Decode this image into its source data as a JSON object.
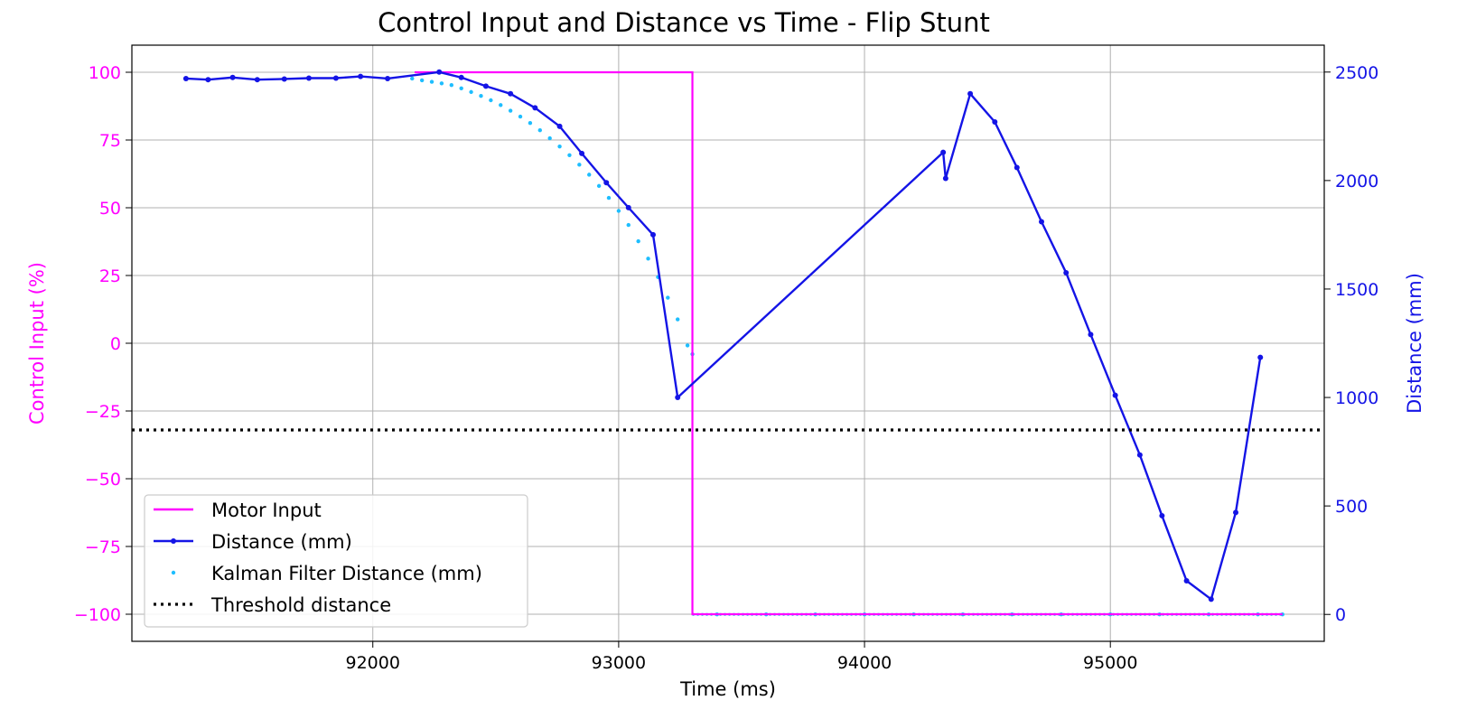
{
  "chart_data": {
    "type": "line",
    "title": "Control Input and Distance vs Time - Flip Stunt",
    "xlabel": "Time (ms)",
    "ylabel_left": "Control Input (%)",
    "ylabel_right": "Distance (mm)",
    "xlim": [
      91020,
      95870
    ],
    "ylim_left": [
      -110,
      110
    ],
    "ylim_right": [
      -124,
      2624
    ],
    "xticks": [
      92000,
      93000,
      94000,
      95000
    ],
    "yticks_left": [
      100,
      75,
      50,
      25,
      0,
      -25,
      -50,
      -75,
      -100
    ],
    "yticks_right": [
      2500,
      2000,
      1500,
      1000,
      500,
      0
    ],
    "grid": true,
    "legend_position": "lower-left",
    "colors": {
      "motor": "#ff00ff",
      "distance": "#1414e6",
      "kalman": "#1ebeff",
      "threshold": "#000000",
      "left_axis": "#ff00ff",
      "right_axis": "#1414e6"
    },
    "series": [
      {
        "name": "Motor Input",
        "axis": "left",
        "style": "step-line",
        "x": [
          92170,
          93300,
          93300,
          95700
        ],
        "y": [
          100,
          100,
          -100,
          -100
        ]
      },
      {
        "name": "Distance (mm)",
        "axis": "right",
        "style": "line-markers",
        "x": [
          91240,
          91330,
          91430,
          91530,
          91640,
          91740,
          91850,
          91950,
          92060,
          92270,
          92360,
          92460,
          92560,
          92660,
          92760,
          92850,
          92950,
          93040,
          93140,
          93240,
          94320,
          94330,
          94430,
          94530,
          94620,
          94720,
          94820,
          94920,
          95020,
          95120,
          95210,
          95310,
          95410,
          95510,
          95610
        ],
        "y": [
          2470,
          2465,
          2475,
          2465,
          2468,
          2472,
          2472,
          2480,
          2470,
          2500,
          2475,
          2435,
          2400,
          2335,
          2250,
          2125,
          1990,
          1875,
          1750,
          1000,
          2130,
          2010,
          2400,
          2270,
          2060,
          1810,
          1575,
          1290,
          1010,
          735,
          455,
          155,
          70,
          470,
          1185
        ]
      },
      {
        "name": "Kalman Filter Distance (mm)",
        "axis": "right",
        "style": "dots",
        "x": [
          92160,
          92200,
          92240,
          92280,
          92320,
          92360,
          92400,
          92440,
          92480,
          92520,
          92560,
          92600,
          92640,
          92680,
          92720,
          92760,
          92800,
          92840,
          92880,
          92920,
          92960,
          93000,
          93040,
          93080,
          93120,
          93160,
          93200,
          93240,
          93280,
          93300,
          93400,
          93600,
          93800,
          94000,
          94200,
          94400,
          94600,
          94800,
          95000,
          95200,
          95400,
          95600,
          95700
        ],
        "y": [
          2470,
          2462,
          2455,
          2448,
          2440,
          2425,
          2408,
          2390,
          2370,
          2348,
          2322,
          2295,
          2265,
          2232,
          2195,
          2157,
          2117,
          2073,
          2027,
          1975,
          1920,
          1860,
          1795,
          1720,
          1640,
          1555,
          1460,
          1360,
          1240,
          1200,
          0,
          0,
          0,
          0,
          0,
          0,
          0,
          0,
          0,
          0,
          0,
          0,
          0
        ]
      },
      {
        "name": "Threshold distance",
        "axis": "left",
        "style": "dotted-hline",
        "y": -32
      }
    ]
  }
}
